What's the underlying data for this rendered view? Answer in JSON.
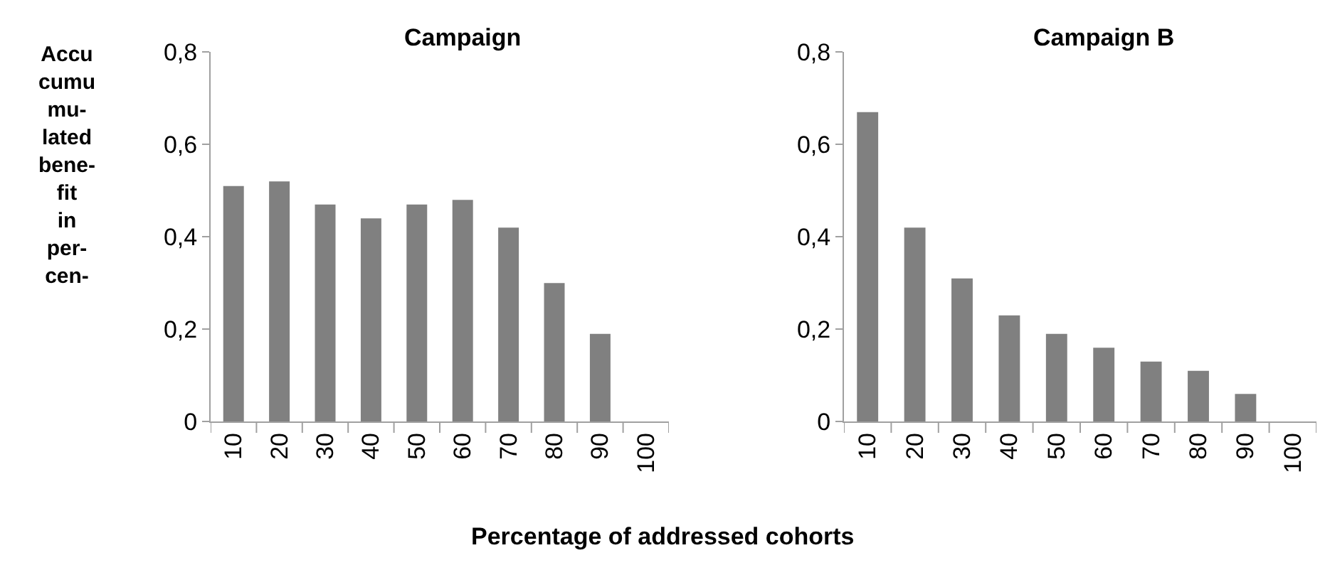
{
  "chart_data": [
    {
      "type": "bar",
      "title": "Campaign",
      "ylabel": "Accu\ncumu\nmu-\nlated\nbene-\nfit\nin\nper-\ncen-",
      "xlabel": "Percentage of addressed cohorts",
      "categories": [
        "10",
        "20",
        "30",
        "40",
        "50",
        "60",
        "70",
        "80",
        "90",
        "100"
      ],
      "values": [
        0.51,
        0.52,
        0.47,
        0.44,
        0.47,
        0.48,
        0.42,
        0.3,
        0.19,
        0
      ],
      "color": "#808080",
      "ylim": [
        0,
        0.8
      ],
      "yticks": [
        0,
        {
          "value": 0.2,
          "label": "0,2"
        },
        {
          "value": 0.4,
          "label": "0,4"
        },
        {
          "value": 0.6,
          "label": "0,6"
        },
        {
          "value": 0.8,
          "label": "0,8"
        }
      ]
    },
    {
      "type": "bar",
      "title": "Campaign B",
      "categories": [
        "10",
        "20",
        "30",
        "40",
        "50",
        "60",
        "70",
        "80",
        "90",
        "100"
      ],
      "values": [
        0.67,
        0.42,
        0.31,
        0.23,
        0.19,
        0.16,
        0.13,
        0.11,
        0.06,
        0
      ],
      "color": "#808080",
      "ylim": [
        0,
        0.8
      ],
      "yticks": [
        0,
        {
          "value": 0.2,
          "label": "0,2"
        },
        {
          "value": 0.4,
          "label": "0,4"
        },
        {
          "value": 0.6,
          "label": "0,6"
        },
        {
          "value": 0.8,
          "label": "0,8"
        }
      ]
    }
  ]
}
